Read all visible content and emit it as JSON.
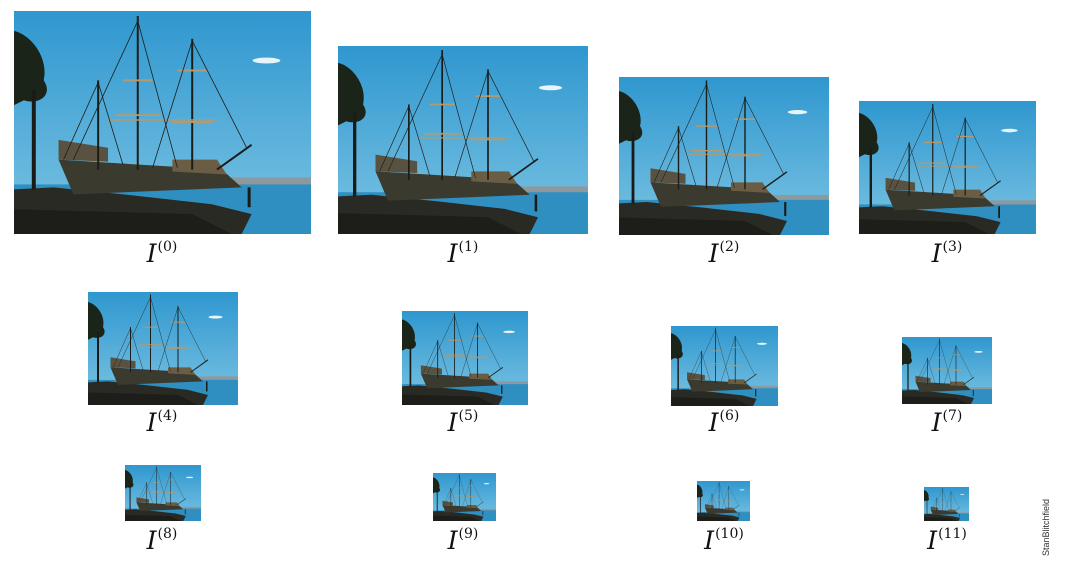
{
  "figure": {
    "variable_letter": "I",
    "levels": [
      {
        "label": "I",
        "index": "(0)"
      },
      {
        "label": "I",
        "index": "(1)"
      },
      {
        "label": "I",
        "index": "(2)"
      },
      {
        "label": "I",
        "index": "(3)"
      },
      {
        "label": "I",
        "index": "(4)"
      },
      {
        "label": "I",
        "index": "(5)"
      },
      {
        "label": "I",
        "index": "(6)"
      },
      {
        "label": "I",
        "index": "(7)"
      },
      {
        "label": "I",
        "index": "(8)"
      },
      {
        "label": "I",
        "index": "(9)"
      },
      {
        "label": "I",
        "index": "(10)"
      },
      {
        "label": "I",
        "index": "(11)"
      }
    ],
    "photo_subject_icon": "tall-ship-photo",
    "credit": "StanBlitchfield"
  },
  "colors": {
    "sky": "#3fa6d3",
    "water": "#2f8fc0",
    "ground": "#2a2a24",
    "hull": "#3b3a2f",
    "rigging": "#1c1c18",
    "spar": "#b49a6e"
  }
}
